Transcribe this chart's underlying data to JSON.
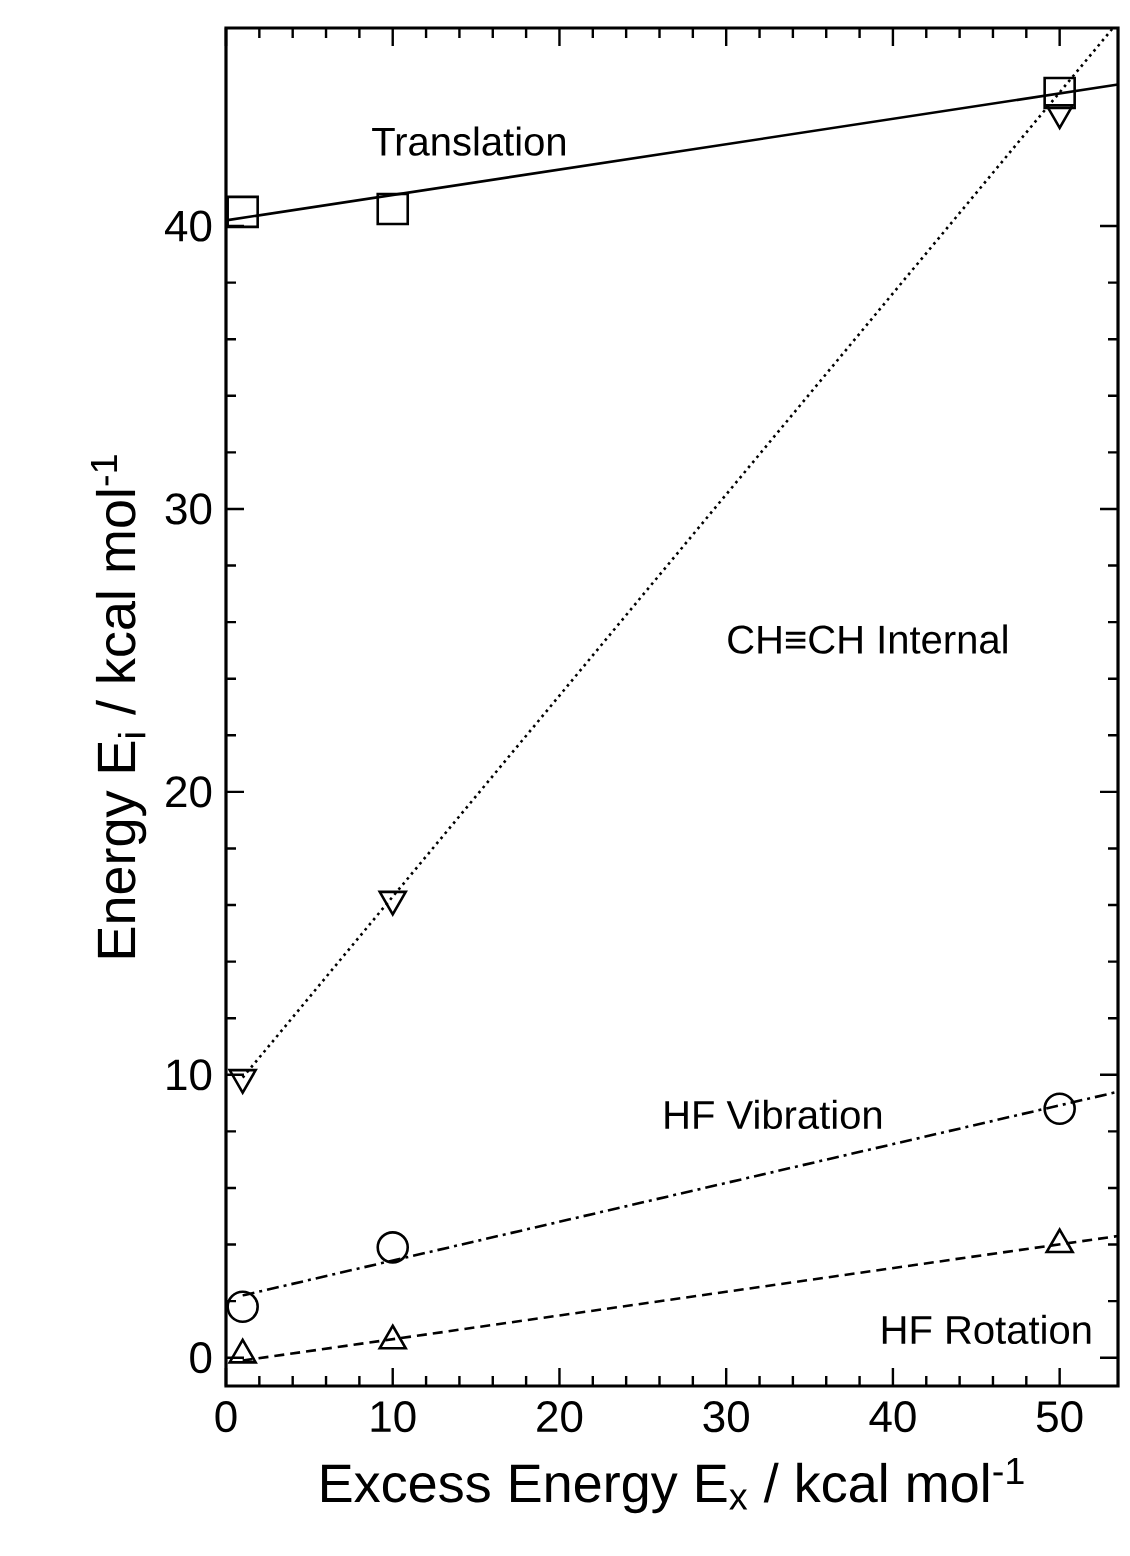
{
  "chart_data": {
    "type": "scatter",
    "xlabel": "Excess Energy E$_{x}$ / kcal mol$^{-1}$",
    "ylabel": "Energy E$_{i}$ / kcal mol$^{-1}$",
    "xlim": [
      0,
      53.5
    ],
    "ylim": [
      -1,
      47
    ],
    "xticks": [
      0,
      10,
      20,
      30,
      40,
      50
    ],
    "yticks": [
      0,
      10,
      20,
      30,
      40
    ],
    "grid": false,
    "annotations": [
      "Translation",
      "CH≡CH Internal",
      "HF Vibration",
      "HF Rotation"
    ],
    "series": [
      {
        "color": "#000000",
        "marker": "square",
        "x": [
          1,
          10,
          50
        ],
        "values": [
          40.5,
          40.6,
          44.7
        ]
      },
      {
        "color": "#000000",
        "marker": "triangle-down",
        "x": [
          1,
          10,
          50
        ],
        "values": [
          9.9,
          16.2,
          44.0
        ]
      },
      {
        "color": "#000000",
        "marker": "circle",
        "x": [
          1,
          10,
          50
        ],
        "values": [
          1.8,
          3.9,
          8.8
        ]
      },
      {
        "color": "#000000",
        "marker": "triangle",
        "x": [
          1,
          10,
          50
        ],
        "values": [
          0.1,
          0.6,
          4.0
        ]
      },
      {
        "type": "line",
        "color": "#000000",
        "marker": "none",
        "line_style": "solid",
        "x": [
          0,
          53.5
        ],
        "values": [
          40.2,
          45.0
        ]
      },
      {
        "type": "line",
        "color": "#000000",
        "marker": "none",
        "line_style": "dotted",
        "x": [
          1,
          53.2
        ],
        "values": [
          9.9,
          47
        ]
      },
      {
        "type": "line",
        "color": "#000000",
        "marker": "none",
        "line_style": "dashdot",
        "x": [
          1,
          53.5
        ],
        "values": [
          2.2,
          9.4
        ]
      },
      {
        "type": "line",
        "color": "#000000",
        "marker": "none",
        "line_style": "dashed",
        "x": [
          1,
          53.5
        ],
        "values": [
          -0.1,
          4.3
        ]
      }
    ]
  }
}
